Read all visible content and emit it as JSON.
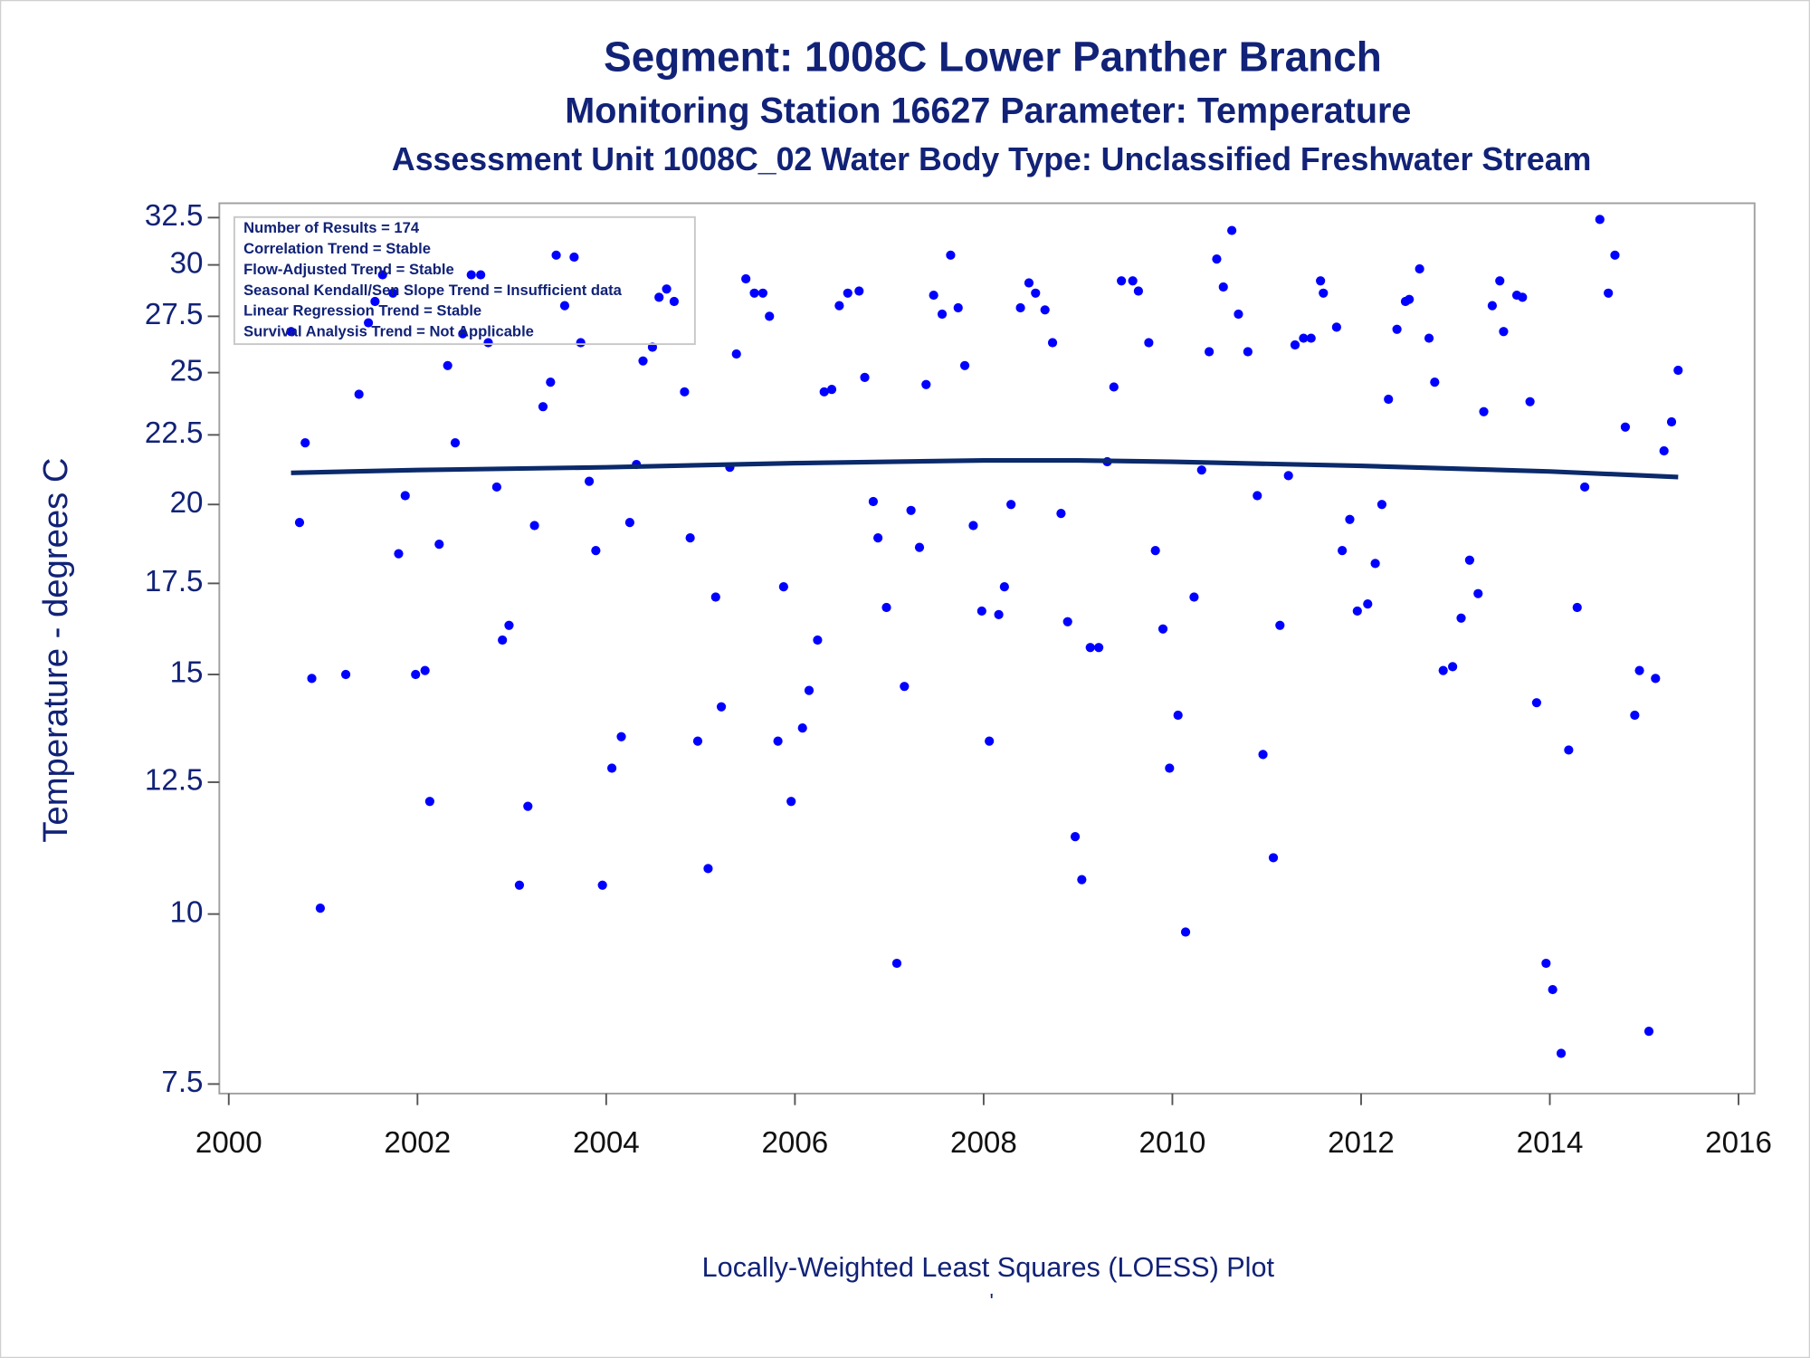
{
  "chart_data": {
    "type": "scatter",
    "title": "Segment: 1008C  Lower Panther Branch",
    "subtitles": [
      "Monitoring Station 16627 Parameter: Temperature",
      "Assessment Unit 1008C_02   Water Body Type: Unclassified Freshwater Stream"
    ],
    "y_label": "Temperature - degrees C",
    "footnote": "Locally-Weighted Least Squares (LOESS) Plot",
    "footnote_mark": "'",
    "inset": [
      "Number of Results = 174",
      "Correlation Trend = Stable",
      "Flow-Adjusted Trend = Stable",
      "Seasonal Kendall/Sen Slope Trend = Insufficient data",
      "Linear Regression Trend = Stable",
      "Survival Analysis Trend = Not Applicable"
    ],
    "xlim": [
      1999.9,
      2016.17
    ],
    "xticks": [
      2000,
      2002,
      2004,
      2006,
      2008,
      2010,
      2012,
      2014,
      2016
    ],
    "ylim": [
      7.38,
      33.3
    ],
    "yticks": [
      7.5,
      10,
      12.5,
      15,
      17.5,
      20,
      22.5,
      25,
      27.5,
      30,
      32.5
    ],
    "yscale": "log",
    "grid": false,
    "points": {
      "color": "#0000ff",
      "x": [
        2000.66,
        2000.75,
        2000.81,
        2000.88,
        2000.97,
        2001.24,
        2001.38,
        2001.48,
        2001.55,
        2001.63,
        2001.74,
        2001.8,
        2001.87,
        2001.98,
        2002.08,
        2002.13,
        2002.23,
        2002.32,
        2002.4,
        2002.48,
        2002.57,
        2002.67,
        2002.75,
        2002.84,
        2002.9,
        2002.97,
        2003.08,
        2003.17,
        2003.24,
        2003.33,
        2003.41,
        2003.47,
        2003.56,
        2003.66,
        2003.73,
        2003.82,
        2003.89,
        2003.96,
        2004.06,
        2004.16,
        2004.25,
        2004.32,
        2004.39,
        2004.49,
        2004.56,
        2004.64,
        2004.72,
        2004.83,
        2004.89,
        2004.97,
        2005.08,
        2005.16,
        2005.22,
        2005.31,
        2005.38,
        2005.48,
        2005.57,
        2005.66,
        2005.73,
        2005.82,
        2005.88,
        2005.96,
        2006.08,
        2006.15,
        2006.24,
        2006.31,
        2006.39,
        2006.47,
        2006.56,
        2006.68,
        2006.74,
        2006.83,
        2006.88,
        2006.97,
        2007.08,
        2007.16,
        2007.23,
        2007.32,
        2007.39,
        2007.47,
        2007.56,
        2007.65,
        2007.73,
        2007.8,
        2007.89,
        2007.98,
        2008.06,
        2008.16,
        2008.22,
        2008.29,
        2008.39,
        2008.48,
        2008.55,
        2008.65,
        2008.73,
        2008.82,
        2008.89,
        2008.97,
        2009.04,
        2009.13,
        2009.22,
        2009.31,
        2009.38,
        2009.46,
        2009.58,
        2009.64,
        2009.75,
        2009.82,
        2009.9,
        2009.97,
        2010.06,
        2010.14,
        2010.23,
        2010.31,
        2010.39,
        2010.47,
        2010.54,
        2010.63,
        2010.7,
        2010.8,
        2010.9,
        2010.96,
        2011.07,
        2011.14,
        2011.23,
        2011.3,
        2011.39,
        2011.47,
        2011.57,
        2011.6,
        2011.74,
        2011.8,
        2011.88,
        2011.96,
        2012.07,
        2012.15,
        2012.22,
        2012.29,
        2012.38,
        2012.47,
        2012.51,
        2012.62,
        2012.72,
        2012.78,
        2012.87,
        2012.97,
        2013.06,
        2013.15,
        2013.24,
        2013.3,
        2013.39,
        2013.47,
        2013.51,
        2013.65,
        2013.71,
        2013.79,
        2013.86,
        2013.96,
        2014.03,
        2014.12,
        2014.2,
        2014.29,
        2014.37,
        2014.53,
        2014.62,
        2014.69,
        2014.8,
        2014.9,
        2014.95,
        2015.05,
        2015.12,
        2015.21,
        2015.29,
        2015.36
      ],
      "values": [
        26.8,
        19.4,
        22.2,
        14.9,
        10.1,
        15.0,
        24.1,
        27.2,
        28.2,
        29.5,
        28.6,
        18.4,
        20.3,
        15.0,
        15.1,
        12.1,
        18.7,
        25.3,
        22.2,
        26.7,
        29.5,
        29.5,
        26.3,
        20.6,
        15.9,
        16.3,
        10.5,
        12.0,
        19.3,
        23.6,
        24.6,
        30.5,
        28.0,
        30.4,
        26.3,
        20.8,
        18.5,
        10.5,
        12.8,
        13.5,
        19.4,
        21.4,
        25.5,
        26.1,
        28.4,
        28.8,
        28.2,
        24.2,
        18.9,
        13.4,
        10.8,
        17.1,
        14.2,
        21.3,
        25.8,
        29.3,
        28.6,
        28.6,
        27.5,
        13.4,
        17.4,
        12.1,
        13.7,
        14.6,
        15.9,
        24.2,
        24.3,
        28.0,
        28.6,
        28.7,
        24.8,
        20.1,
        18.9,
        16.8,
        9.2,
        14.7,
        19.8,
        18.6,
        24.5,
        28.5,
        27.6,
        30.5,
        27.9,
        25.3,
        19.3,
        16.7,
        13.4,
        16.6,
        17.4,
        20.0,
        27.9,
        29.1,
        28.6,
        27.8,
        26.3,
        19.7,
        16.4,
        11.4,
        10.6,
        15.7,
        15.7,
        21.5,
        24.4,
        29.2,
        29.2,
        28.7,
        26.3,
        18.5,
        16.2,
        12.8,
        14.0,
        9.7,
        17.1,
        21.2,
        25.9,
        30.3,
        28.9,
        31.8,
        27.6,
        25.9,
        20.3,
        13.1,
        11.0,
        16.3,
        21.0,
        26.2,
        26.5,
        26.5,
        29.2,
        28.6,
        27.0,
        18.5,
        19.5,
        16.7,
        16.9,
        18.1,
        20.0,
        23.9,
        26.9,
        28.2,
        28.3,
        29.8,
        26.5,
        24.6,
        15.1,
        15.2,
        16.5,
        18.2,
        17.2,
        23.4,
        28.0,
        29.2,
        26.8,
        28.5,
        28.4,
        23.8,
        14.3,
        9.2,
        8.8,
        7.9,
        13.2,
        16.8,
        20.6,
        32.4,
        28.6,
        30.5,
        22.8,
        14.0,
        15.1,
        8.2,
        14.9,
        21.9,
        23.0,
        25.1
      ]
    },
    "loess": {
      "color": "#0b2a6b",
      "x": [
        2000.66,
        2002,
        2004,
        2006,
        2008,
        2009,
        2010,
        2012,
        2014,
        2015.36
      ],
      "values": [
        21.1,
        21.2,
        21.3,
        21.45,
        21.55,
        21.55,
        21.5,
        21.35,
        21.15,
        20.95
      ]
    }
  }
}
